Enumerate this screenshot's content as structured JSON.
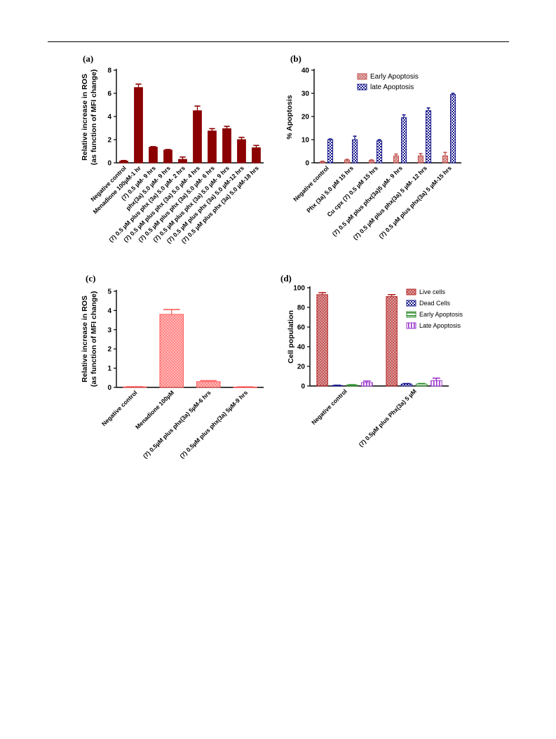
{
  "chart_data": [
    {
      "panel": "(a)",
      "type": "bar",
      "ylabel": [
        "Relative increase in ROS",
        "(as function of MFI change)"
      ],
      "ylim": [
        0,
        8
      ],
      "yticks": [
        0,
        2,
        4,
        6,
        8
      ],
      "categories": [
        "Negative control",
        "Menadione 100µM-1 hr",
        "(7) 0.5 µM- 9 hrs",
        "phx(3a) 5.0 µM- 9 hrs",
        "(7) 0.5 µM plus phx (3a) 5.0 µM- 2 hrs",
        "(7) 0.5 µM plus phx (3a) 5.0 µM- 4 hrs",
        "(7) 0.5 µM plus phx (3a) 5.0 µM- 6 hrs",
        "(7) 0.5 µM plus phx (3a) 5.0 µM- 9 hrs",
        "(7) 0.5 µM plus phx (3a) 5.0 µM-12 hrs",
        "(7) 0.5 µM plus phx (3a) 5.0 µM-18 hrs"
      ],
      "series": [
        {
          "values": [
            0.15,
            6.5,
            1.35,
            1.1,
            0.3,
            4.5,
            2.75,
            2.95,
            2.0,
            1.3
          ],
          "errors": [
            0.05,
            0.3,
            0.05,
            0.05,
            0.2,
            0.4,
            0.2,
            0.2,
            0.2,
            0.2
          ],
          "color": "#8b0000"
        }
      ],
      "grid": false
    },
    {
      "panel": "(b)",
      "type": "bar",
      "ylabel": "% Apoptosis",
      "ylim": [
        0,
        40
      ],
      "yticks": [
        0,
        10,
        20,
        30,
        40
      ],
      "categories": [
        "Negative control",
        "Phx (3a) 5.0 µM 15 hrs",
        "Cu cpx (7) 0.5 µM 15 hrs",
        "(7) 0.5 µM plus phx(3a)5 µM- 9 hrs",
        "(7) 0.5 µM plus phx(3a) 5 µM- 12 hrs",
        "(7) 0.5 µM plus phx(3a) 5 µM-15 hrs"
      ],
      "series": [
        {
          "name": "Early Apoptosis",
          "values": [
            0.5,
            1.2,
            1.0,
            3.0,
            3.0,
            3.0
          ],
          "errors": [
            0.2,
            0.3,
            0.3,
            0.8,
            1.0,
            1.5
          ],
          "color": "#c0504d",
          "pattern": "dots"
        },
        {
          "name": "late Apoptosis",
          "values": [
            10,
            10,
            9.5,
            19.5,
            22.5,
            29.5
          ],
          "errors": [
            0.3,
            1.5,
            0.5,
            1.2,
            1.2,
            0.5
          ],
          "color": "#1a1a8c",
          "pattern": "check"
        }
      ],
      "legend": "top-right",
      "grid": false
    },
    {
      "panel": "(c)",
      "type": "bar",
      "ylabel": [
        "Relative increase in ROS",
        "(as function of MFI change)"
      ],
      "ylim": [
        0,
        5
      ],
      "yticks": [
        0,
        1,
        2,
        3,
        4,
        5
      ],
      "categories": [
        "Negative control",
        "Menadione 100µM",
        "(7) 0.5µM plus phx(3a) 5µM-6 hrs",
        "(7) 0.5µM plus phx(3a) 5µM-9 hrs"
      ],
      "series": [
        {
          "values": [
            0.03,
            3.8,
            0.3,
            0.02
          ],
          "errors": [
            0.01,
            0.25,
            0.05,
            0.01
          ],
          "color": "#ff5f5f",
          "pattern": "dots"
        }
      ],
      "grid": false
    },
    {
      "panel": "(d)",
      "type": "bar",
      "ylabel": "Cell population",
      "ylim": [
        0,
        100
      ],
      "yticks": [
        0,
        20,
        40,
        60,
        80,
        100
      ],
      "categories": [
        "Negative control",
        "(7) 0.5µM plus Phx(3a) 5 µM"
      ],
      "series": [
        {
          "name": "Live cells",
          "values": [
            93,
            91
          ],
          "errors": [
            2,
            2
          ],
          "color": "#b22222",
          "pattern": "dots"
        },
        {
          "name": "Dead Cells",
          "values": [
            0.5,
            2
          ],
          "errors": [
            0.3,
            0.5
          ],
          "color": "#1a1a8c",
          "pattern": "check"
        },
        {
          "name": "Early Apoptosis",
          "values": [
            1,
            2
          ],
          "errors": [
            0.3,
            0.5
          ],
          "color": "#2e8b2e",
          "pattern": "hlines"
        },
        {
          "name": "Late Apoptosis",
          "values": [
            3.5,
            5.5
          ],
          "errors": [
            1.5,
            2.5
          ],
          "color": "#9932cc",
          "pattern": "vlines"
        }
      ],
      "legend": "top-right",
      "grid": false
    }
  ]
}
